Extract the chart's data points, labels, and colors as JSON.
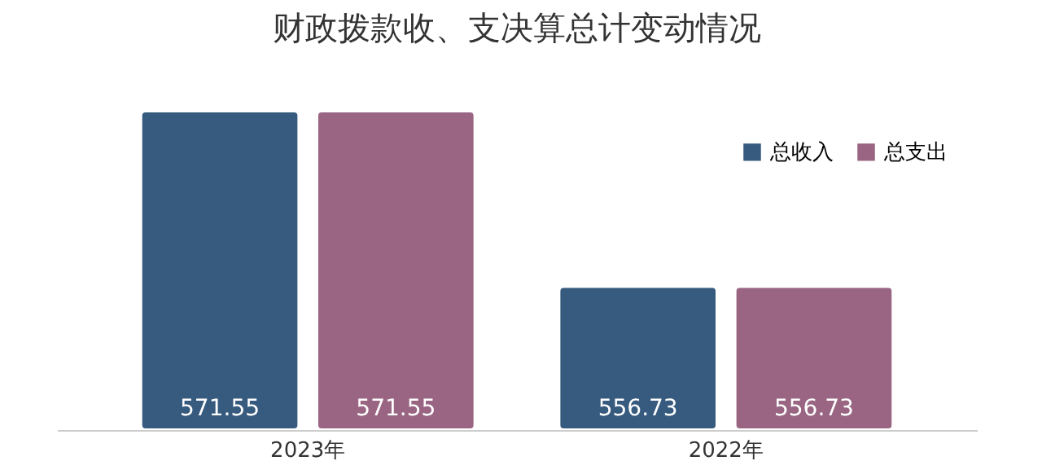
{
  "chart_data": {
    "type": "bar",
    "title": "财政拨款收、支决算总计变动情况",
    "categories": [
      "2023年",
      "2022年"
    ],
    "series": [
      {
        "name": "总收入",
        "color": "#375a7f",
        "values": [
          571.55,
          556.73
        ]
      },
      {
        "name": "总支出",
        "color": "#996582",
        "values": [
          571.55,
          556.73
        ]
      }
    ],
    "ylim": [
      544.6,
      571.55
    ],
    "data_labels": true,
    "legend": "top right",
    "grid": false
  }
}
